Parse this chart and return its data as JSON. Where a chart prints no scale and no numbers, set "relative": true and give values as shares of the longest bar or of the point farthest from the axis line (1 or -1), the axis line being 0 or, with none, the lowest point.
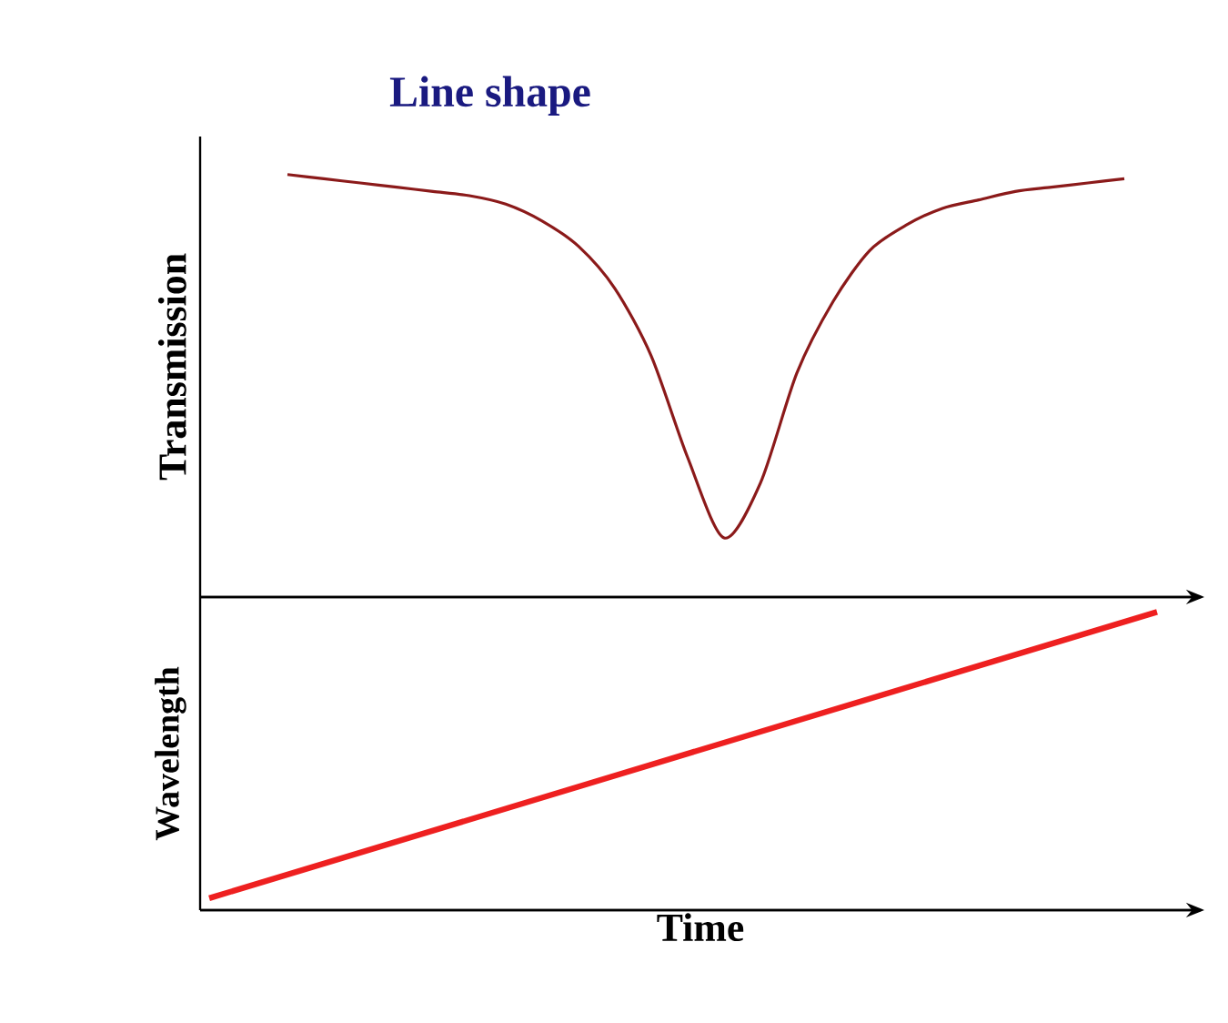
{
  "chart_data": [
    {
      "type": "line",
      "title": "Line shape",
      "ylabel": "Transmission",
      "relative": true,
      "color": "#8b1a1a",
      "categories": [
        null,
        null,
        null,
        null,
        null,
        null,
        null,
        null,
        null,
        null,
        null,
        null,
        null,
        null,
        null,
        null,
        null,
        null,
        null,
        null,
        null,
        null,
        null,
        null
      ],
      "values": [
        1,
        0.99,
        0.98,
        0.97,
        0.96,
        0.95,
        0.93,
        0.89,
        0.83,
        0.73,
        0.57,
        0.33,
        0.14,
        0.27,
        0.53,
        0.7,
        0.82,
        0.88,
        0.92,
        0.94,
        0.96,
        0.97,
        0.98,
        0.99
      ]
    },
    {
      "type": "line",
      "xlabel": "Time",
      "ylabel": "Wavelength",
      "relative": true,
      "color": "#ee2020",
      "categories": [
        null,
        null
      ],
      "values": [
        0.04,
        1
      ]
    }
  ]
}
